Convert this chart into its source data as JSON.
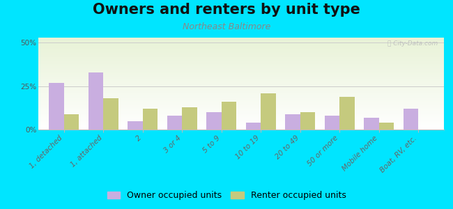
{
  "title": "Owners and renters by unit type",
  "subtitle": "Northeast Baltimore",
  "categories": [
    "1, detached",
    "1, attached",
    "2",
    "3 or 4",
    "5 to 9",
    "10 to 19",
    "20 to 49",
    "50 or more",
    "Mobile home",
    "Boat, RV, etc."
  ],
  "owner_values": [
    27,
    33,
    5,
    8,
    10,
    4,
    9,
    8,
    7,
    12
  ],
  "renter_values": [
    9,
    18,
    12,
    13,
    16,
    21,
    10,
    19,
    4,
    0
  ],
  "owner_color": "#c9aee0",
  "renter_color": "#c5ca7e",
  "owner_label": "Owner occupied units",
  "renter_label": "Renter occupied units",
  "yticks": [
    0,
    25,
    50
  ],
  "ytick_labels": [
    "0%",
    "25%",
    "50%"
  ],
  "ylim": [
    0,
    53
  ],
  "outer_bg": "#00e5ff",
  "title_fontsize": 15,
  "subtitle_fontsize": 9,
  "tick_fontsize": 7.5,
  "legend_fontsize": 9,
  "bar_width": 0.38,
  "grid_color": "#cccccc",
  "watermark": "Ⓜ City-Data.com",
  "subtitle_color": "#888888",
  "title_color": "#111111"
}
